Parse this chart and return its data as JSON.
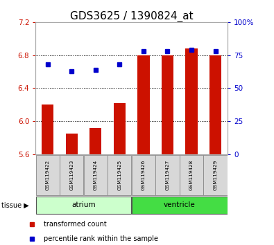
{
  "title": "GDS3625 / 1390824_at",
  "samples": [
    "GSM119422",
    "GSM119423",
    "GSM119424",
    "GSM119425",
    "GSM119426",
    "GSM119427",
    "GSM119428",
    "GSM119429"
  ],
  "red_values": [
    6.2,
    5.85,
    5.92,
    6.22,
    6.8,
    6.8,
    6.88,
    6.8
  ],
  "blue_values": [
    68,
    63,
    64,
    68,
    78,
    78,
    79,
    78
  ],
  "ylim_left": [
    5.6,
    7.2
  ],
  "ylim_right": [
    0,
    100
  ],
  "yticks_left": [
    5.6,
    6.0,
    6.4,
    6.8,
    7.2
  ],
  "yticks_right": [
    0,
    25,
    50,
    75,
    100
  ],
  "bar_color": "#cc1100",
  "dot_color": "#0000cc",
  "bar_bottom": 5.6,
  "groups": [
    {
      "label": "atrium",
      "start": 0,
      "end": 4,
      "color": "#ccffcc"
    },
    {
      "label": "ventricle",
      "start": 4,
      "end": 8,
      "color": "#44dd44"
    }
  ],
  "tissue_label": "tissue",
  "legend_items": [
    {
      "label": "transformed count",
      "color": "#cc1100"
    },
    {
      "label": "percentile rank within the sample",
      "color": "#0000cc"
    }
  ],
  "background_color": "#ffffff",
  "plot_bg": "#ffffff",
  "title_fontsize": 11,
  "tick_label_color_left": "#cc1100",
  "tick_label_color_right": "#0000cc",
  "right_tick_labels": [
    "0",
    "25",
    "50",
    "75",
    "100%"
  ]
}
